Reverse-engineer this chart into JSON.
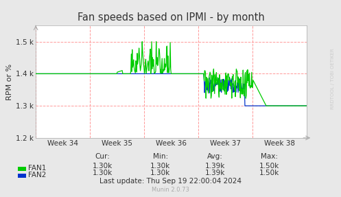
{
  "title": "Fan speeds based on IPMI - by month",
  "ylabel": "RPM or %",
  "bg_color": "#e8e8e8",
  "plot_bg_color": "#ffffff",
  "grid_color": "#ff9999",
  "ylim": [
    1200,
    1550
  ],
  "yticks": [
    1200,
    1300,
    1400,
    1500
  ],
  "ytick_labels": [
    "1.2 k",
    "1.3 k",
    "1.4 k",
    "1.5 k"
  ],
  "week_labels": [
    "Week 34",
    "Week 35",
    "Week 36",
    "Week 37",
    "Week 38"
  ],
  "fan1_color": "#00cc00",
  "fan2_color": "#0033cc",
  "legend_fan1": "FAN1",
  "legend_fan2": "FAN2",
  "watermark": "RRDTOOL / TOBI OETIKER",
  "munin_version": "Munin 2.0.73",
  "last_update": "Last update: Thu Sep 19 22:00:04 2024",
  "table_headers": [
    "Cur:",
    "Min:",
    "Avg:",
    "Max:"
  ],
  "fan1_stats": [
    "1.30k",
    "1.30k",
    "1.39k",
    "1.50k"
  ],
  "fan2_stats": [
    "1.30k",
    "1.30k",
    "1.39k",
    "1.50k"
  ]
}
